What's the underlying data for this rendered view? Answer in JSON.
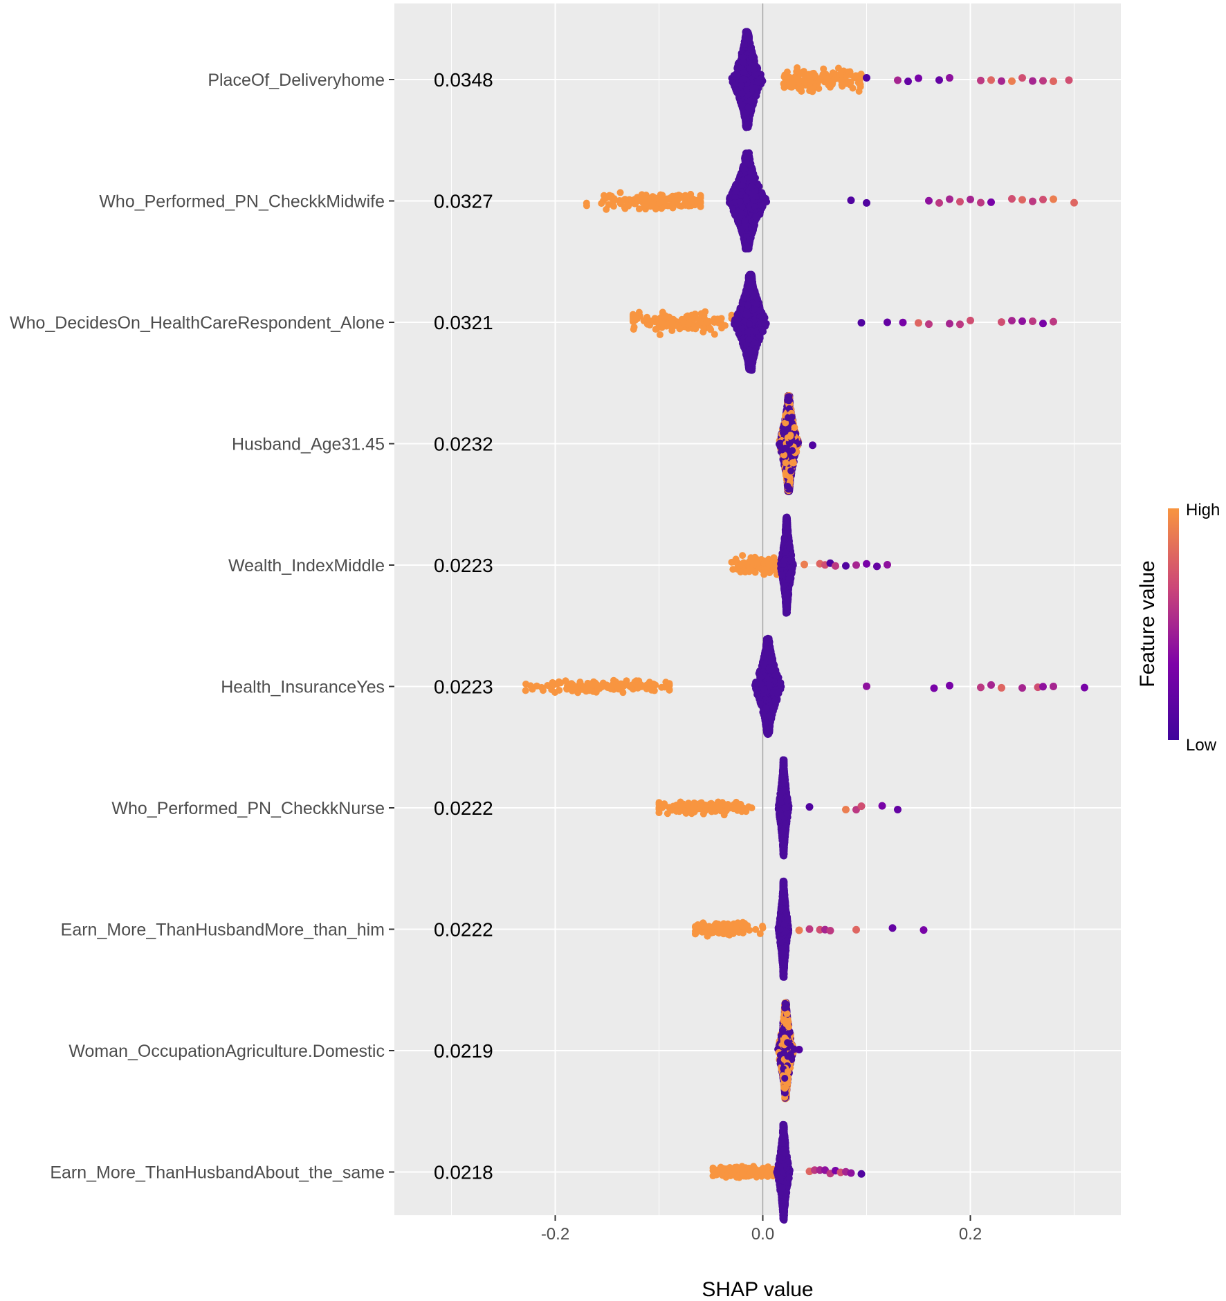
{
  "chart_data": {
    "type": "scatter",
    "subtype": "shap-beeswarm",
    "xlabel": "SHAP value",
    "xlim": [
      -0.355,
      0.345
    ],
    "x_ticks": [
      -0.2,
      0.0,
      0.2
    ],
    "x_tick_labels": [
      "-0.2",
      "0.0",
      "0.2"
    ],
    "grid": true,
    "zero_line": true,
    "legend": {
      "title": "Feature value",
      "high_label": "High",
      "low_label": "Low",
      "placement": "right",
      "colors": [
        "#f89540",
        "#cc4778",
        "#7e03a8",
        "#3e049c"
      ]
    },
    "colors": {
      "high": "#f89540",
      "low": "#4b0c9b",
      "panel": "#ebebeb",
      "grid": "#ffffff",
      "zero": "#a0a0a0"
    },
    "features": [
      {
        "name": "PlaceOf_Deliveryhome",
        "importance": "0.0348",
        "low_center": -0.015,
        "low_spread": 0.028,
        "low_height": 0.85,
        "high_range": [
          0.02,
          0.095
        ],
        "high_height": 0.18,
        "outliers": [
          [
            0.1,
            0.1
          ],
          [
            0.13,
            0.5
          ],
          [
            0.14,
            0.2
          ],
          [
            0.15,
            0.3
          ],
          [
            0.17,
            0.2
          ],
          [
            0.18,
            0.4
          ],
          [
            0.21,
            0.6
          ],
          [
            0.22,
            0.8
          ],
          [
            0.23,
            0.5
          ],
          [
            0.24,
            0.9
          ],
          [
            0.25,
            0.7
          ],
          [
            0.26,
            0.5
          ],
          [
            0.27,
            0.6
          ],
          [
            0.28,
            0.8
          ],
          [
            0.295,
            0.7
          ]
        ]
      },
      {
        "name": "Who_Performed_PN_CheckkMidwife",
        "importance": "0.0327",
        "low_center": -0.015,
        "low_spread": 0.035,
        "low_height": 0.85,
        "high_range": [
          -0.175,
          -0.06
        ],
        "high_center": -0.105,
        "high_height": 0.14,
        "outliers": [
          [
            0.085,
            0.1
          ],
          [
            0.1,
            0.1
          ],
          [
            0.16,
            0.4
          ],
          [
            0.17,
            0.6
          ],
          [
            0.18,
            0.5
          ],
          [
            0.19,
            0.7
          ],
          [
            0.2,
            0.5
          ],
          [
            0.21,
            0.6
          ],
          [
            0.22,
            0.3
          ],
          [
            0.24,
            0.7
          ],
          [
            0.25,
            0.8
          ],
          [
            0.26,
            0.6
          ],
          [
            0.27,
            0.7
          ],
          [
            0.28,
            0.9
          ],
          [
            0.3,
            0.8
          ]
        ]
      },
      {
        "name": "Who_DecidesOn_HealthCareRespondent_Alone",
        "importance": "0.0321",
        "low_center": -0.012,
        "low_spread": 0.03,
        "low_height": 0.85,
        "high_range": [
          -0.125,
          -0.03
        ],
        "high_center": -0.08,
        "high_height": 0.16,
        "outliers": [
          [
            0.095,
            0.1
          ],
          [
            0.12,
            0.2
          ],
          [
            0.135,
            0.3
          ],
          [
            0.15,
            0.8
          ],
          [
            0.16,
            0.6
          ],
          [
            0.18,
            0.5
          ],
          [
            0.19,
            0.6
          ],
          [
            0.2,
            0.7
          ],
          [
            0.23,
            0.7
          ],
          [
            0.24,
            0.5
          ],
          [
            0.25,
            0.4
          ],
          [
            0.26,
            0.6
          ],
          [
            0.27,
            0.3
          ],
          [
            0.28,
            0.6
          ]
        ]
      },
      {
        "name": "Husband_Age31.45",
        "importance": "0.0232",
        "low_center": 0.025,
        "low_spread": 0.018,
        "low_height": 0.85,
        "mixed": true,
        "high_range": [
          0.005,
          0.045
        ],
        "high_height": 0.85,
        "outliers": [
          [
            0.048,
            0.1
          ]
        ]
      },
      {
        "name": "Wealth_IndexMiddle",
        "importance": "0.0223",
        "low_center": 0.023,
        "low_spread": 0.012,
        "low_height": 0.85,
        "high_range": [
          -0.03,
          0.02
        ],
        "high_center": 0.0,
        "high_height": 0.14,
        "outliers": [
          [
            0.04,
            0.9
          ],
          [
            0.055,
            0.8
          ],
          [
            0.06,
            0.7
          ],
          [
            0.065,
            0.1
          ],
          [
            0.07,
            0.6
          ],
          [
            0.08,
            0.1
          ],
          [
            0.09,
            0.5
          ],
          [
            0.1,
            0.3
          ],
          [
            0.11,
            0.2
          ],
          [
            0.12,
            0.4
          ]
        ]
      },
      {
        "name": "Health_InsuranceYes",
        "importance": "0.0223",
        "low_center": 0.005,
        "low_spread": 0.025,
        "low_height": 0.85,
        "high_range": [
          -0.235,
          -0.09
        ],
        "high_center": -0.15,
        "high_height": 0.1,
        "outliers": [
          [
            0.1,
            0.4
          ],
          [
            0.165,
            0.3
          ],
          [
            0.18,
            0.3
          ],
          [
            0.21,
            0.6
          ],
          [
            0.22,
            0.5
          ],
          [
            0.23,
            0.8
          ],
          [
            0.25,
            0.5
          ],
          [
            0.265,
            0.7
          ],
          [
            0.27,
            0.4
          ],
          [
            0.28,
            0.5
          ],
          [
            0.31,
            0.3
          ]
        ]
      },
      {
        "name": "Who_Performed_PN_CheckkNurse",
        "importance": "0.0222",
        "low_center": 0.02,
        "low_spread": 0.01,
        "low_height": 0.85,
        "high_range": [
          -0.1,
          -0.005
        ],
        "high_center": -0.06,
        "high_height": 0.1,
        "outliers": [
          [
            0.045,
            0.1
          ],
          [
            0.08,
            0.9
          ],
          [
            0.09,
            0.6
          ],
          [
            0.095,
            0.7
          ],
          [
            0.115,
            0.3
          ],
          [
            0.13,
            0.2
          ]
        ]
      },
      {
        "name": "Earn_More_ThanHusbandMore_than_him",
        "importance": "0.0222",
        "low_center": 0.02,
        "low_spread": 0.01,
        "low_height": 0.85,
        "high_range": [
          -0.065,
          0.0
        ],
        "high_center": -0.04,
        "high_height": 0.1,
        "outliers": [
          [
            0.035,
            0.9
          ],
          [
            0.045,
            0.6
          ],
          [
            0.055,
            0.7
          ],
          [
            0.06,
            0.5
          ],
          [
            0.065,
            0.6
          ],
          [
            0.09,
            0.8
          ],
          [
            0.125,
            0.2
          ],
          [
            0.155,
            0.3
          ]
        ]
      },
      {
        "name": "Woman_OccupationAgriculture.Domestic",
        "importance": "0.0219",
        "low_center": 0.022,
        "low_spread": 0.015,
        "low_height": 0.85,
        "mixed": true,
        "high_range": [
          0.012,
          0.035
        ],
        "high_height": 0.85,
        "outliers": [
          [
            0.035,
            0.1
          ]
        ]
      },
      {
        "name": "Earn_More_ThanHusbandAbout_the_same",
        "importance": "0.0218",
        "low_center": 0.02,
        "low_spread": 0.012,
        "low_height": 0.85,
        "high_range": [
          -0.048,
          0.01
        ],
        "high_center": -0.02,
        "high_height": 0.1,
        "outliers": [
          [
            0.045,
            0.8
          ],
          [
            0.05,
            0.6
          ],
          [
            0.055,
            0.5
          ],
          [
            0.06,
            0.4
          ],
          [
            0.065,
            0.6
          ],
          [
            0.07,
            0.3
          ],
          [
            0.075,
            0.7
          ],
          [
            0.08,
            0.5
          ],
          [
            0.085,
            0.4
          ],
          [
            0.095,
            0.1
          ]
        ]
      }
    ]
  }
}
